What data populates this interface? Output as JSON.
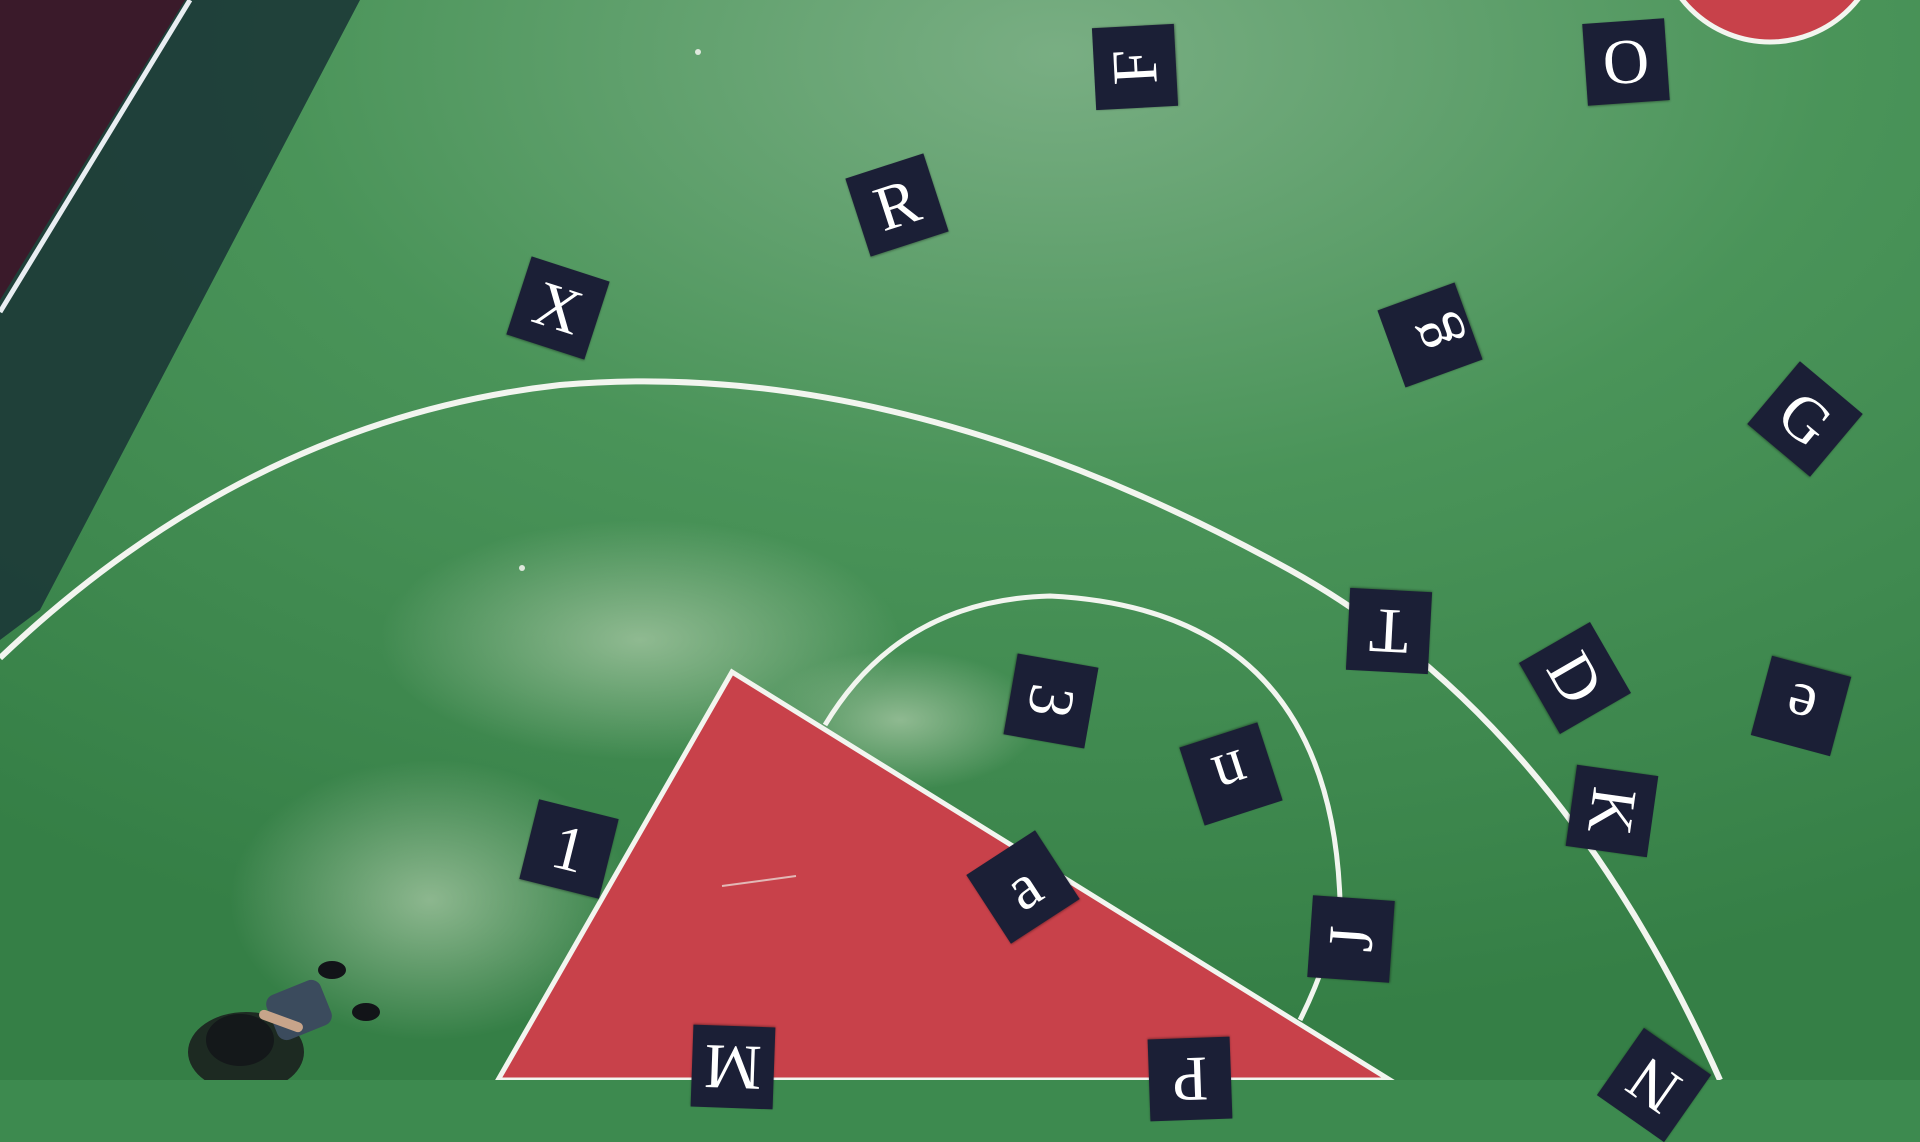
{
  "scene": {
    "description_free_colors": {
      "court_green": "#3d8a4f",
      "court_green_light": "#6fa879",
      "paint_red": "#c8414a",
      "shadow_dark": "#1c3a37",
      "margin_maroon": "#3a1a2a",
      "line_white": "#f2f5ef",
      "tile_navy": "#1b1f36"
    }
  },
  "tiles": [
    {
      "id": "F",
      "char": "F"
    },
    {
      "id": "O",
      "char": "O"
    },
    {
      "id": "R",
      "char": "R"
    },
    {
      "id": "X",
      "char": "X"
    },
    {
      "id": "g",
      "char": "g"
    },
    {
      "id": "G",
      "char": "G"
    },
    {
      "id": "T",
      "char": "T"
    },
    {
      "id": "D",
      "char": "D"
    },
    {
      "id": "e",
      "char": "e"
    },
    {
      "id": "3",
      "char": "3"
    },
    {
      "id": "n",
      "char": "n"
    },
    {
      "id": "K",
      "char": "K"
    },
    {
      "id": "1",
      "char": "1"
    },
    {
      "id": "a",
      "char": "a"
    },
    {
      "id": "J",
      "char": "J"
    },
    {
      "id": "M",
      "char": "M"
    },
    {
      "id": "P",
      "char": "P"
    },
    {
      "id": "N",
      "char": "N"
    }
  ]
}
